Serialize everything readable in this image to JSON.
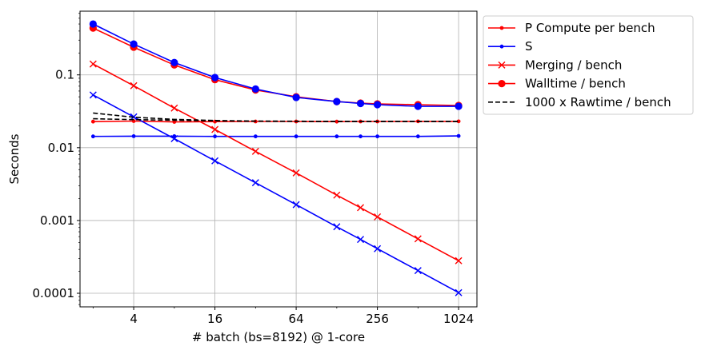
{
  "chart_data": {
    "type": "line",
    "xlabel": "# batch (bs=8192) @ 1-core",
    "ylabel": "Seconds",
    "x_scale": "log2",
    "y_scale": "log10",
    "xlim": [
      1.6,
      1400
    ],
    "ylim": [
      6.51e-05,
      0.75
    ],
    "x_ticks": [
      {
        "value": 4,
        "label": "4"
      },
      {
        "value": 16,
        "label": "16"
      },
      {
        "value": 64,
        "label": "64"
      },
      {
        "value": 256,
        "label": "256"
      },
      {
        "value": 1024,
        "label": "1024"
      }
    ],
    "y_ticks": [
      {
        "value": 0.0001,
        "label": "0.0001"
      },
      {
        "value": 0.001,
        "label": "0.001"
      },
      {
        "value": 0.01,
        "label": "0.01"
      },
      {
        "value": 0.1,
        "label": "0.1"
      }
    ],
    "grid": true,
    "legend_placement": "outside-right-top",
    "x": [
      2,
      4,
      8,
      16,
      32,
      64,
      128,
      192,
      256,
      512,
      1024
    ],
    "series": [
      {
        "name": "P Compute per bench",
        "color": "#ff0000",
        "marker": "dot",
        "linestyle": "solid",
        "values": [
          0.0228,
          0.0232,
          0.0226,
          0.0228,
          0.0229,
          0.0229,
          0.0228,
          0.0229,
          0.0229,
          0.023,
          0.023
        ]
      },
      {
        "name": "S",
        "color": "#0000ff",
        "marker": "dot",
        "linestyle": "solid",
        "values": [
          0.0143,
          0.0144,
          0.0144,
          0.0143,
          0.0143,
          0.0143,
          0.0143,
          0.0143,
          0.0143,
          0.0143,
          0.0145
        ]
      },
      {
        "name": "Merging / bench",
        "color": "#ff0000",
        "marker": "x",
        "linestyle": "solid",
        "values": [
          0.141,
          0.071,
          0.035,
          0.0178,
          0.0089,
          0.0045,
          0.00223,
          0.0015,
          0.00112,
          0.00056,
          0.00028
        ]
      },
      {
        "name": "Walltime / bench",
        "color": "#ff0000",
        "marker": "bigdot",
        "linestyle": "solid",
        "values": [
          0.44,
          0.24,
          0.137,
          0.086,
          0.062,
          0.05,
          0.043,
          0.041,
          0.04,
          0.039,
          0.038
        ]
      },
      {
        "name": null,
        "color": "#0000ff",
        "marker": "x",
        "linestyle": "solid",
        "values": [
          0.053,
          0.0265,
          0.0133,
          0.0066,
          0.0033,
          0.00165,
          0.00082,
          0.00055,
          0.00041,
          0.000205,
          0.000102
        ]
      },
      {
        "name": null,
        "color": "#0000ff",
        "marker": "bigdot",
        "linestyle": "solid",
        "values": [
          0.5,
          0.265,
          0.148,
          0.092,
          0.064,
          0.049,
          0.043,
          0.0405,
          0.039,
          0.037,
          0.037
        ]
      },
      {
        "name": "1000 x Rawtime / bench",
        "color": "#000000",
        "marker": "none",
        "linestyle": "dashed",
        "values": [
          0.03,
          0.0262,
          0.0245,
          0.0236,
          0.0232,
          0.0231,
          0.023,
          0.023,
          0.023,
          0.023,
          0.023
        ]
      },
      {
        "name": null,
        "color": "#000000",
        "marker": "none",
        "linestyle": "dashed",
        "values": [
          0.025,
          0.0243,
          0.0238,
          0.0234,
          0.0231,
          0.023,
          0.023,
          0.023,
          0.023,
          0.023,
          0.023
        ]
      }
    ]
  }
}
